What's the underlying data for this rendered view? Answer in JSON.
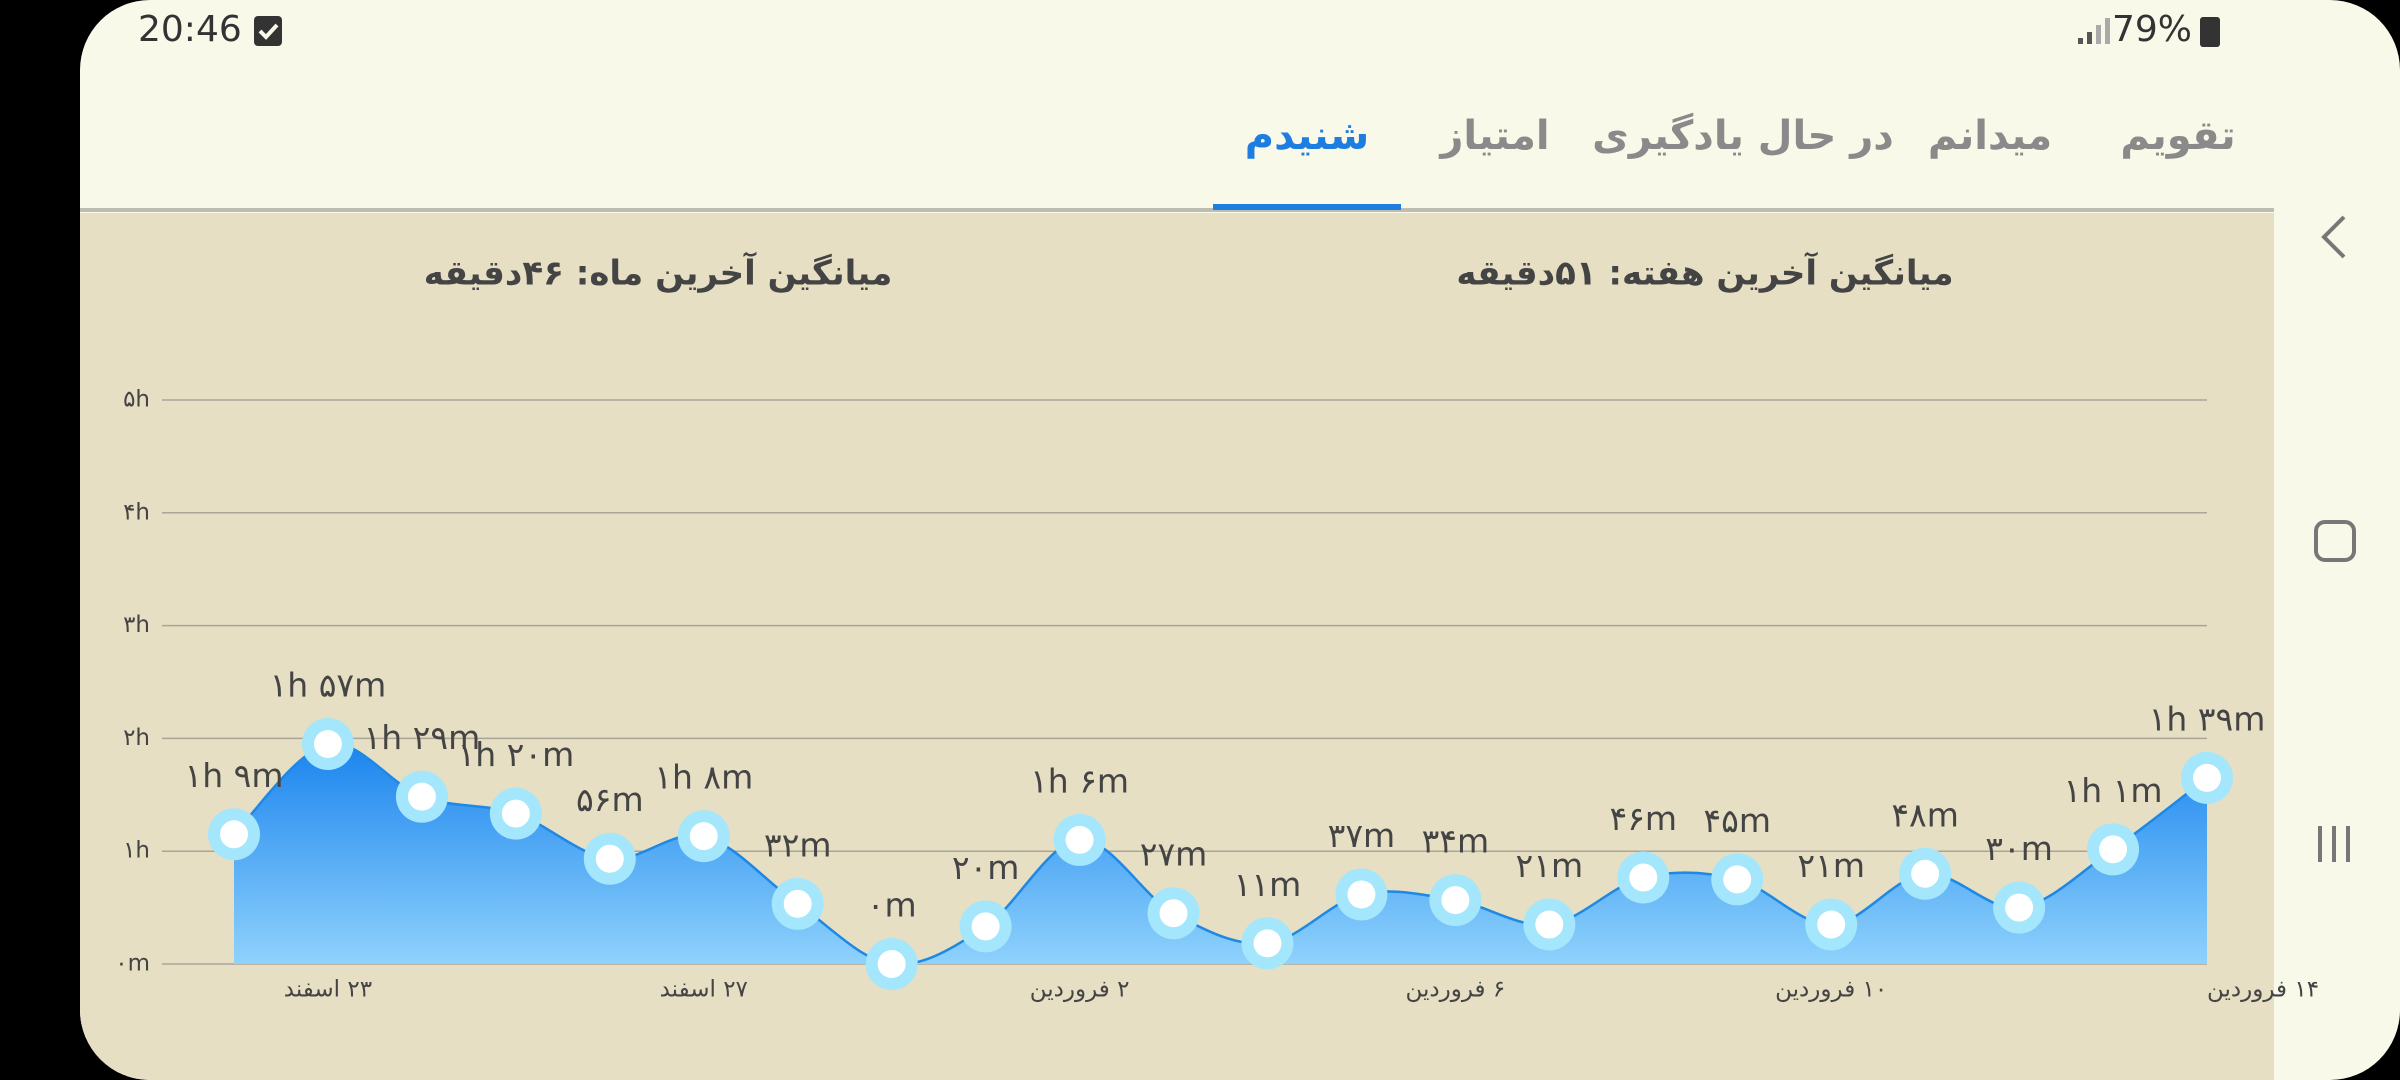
{
  "status_bar": {
    "time": "20:46",
    "battery": "79%"
  },
  "tabs": [
    "تقویم",
    "میدانم",
    "در حال یادگیری",
    "امتیاز",
    "شنیدم"
  ],
  "active_tab": 4,
  "stats": [
    "میانگین آخرین هفته: ۵۱دقیقه",
    "میانگین آخرین ماه: ۴۶دقیقه"
  ],
  "chart_data": {
    "type": "area",
    "categories": [
      null,
      "۲۳ اسفند",
      null,
      null,
      null,
      "۲۷ اسفند",
      null,
      null,
      null,
      "۲ فروردین",
      null,
      null,
      null,
      "۶ فروردین",
      null,
      null,
      null,
      "۱۰ فروردین",
      null,
      null,
      null,
      "۱۴ فروردین"
    ],
    "series": [
      {
        "color": "#1e88e5",
        "values": [
          69,
          117,
          89,
          80,
          56,
          68,
          32,
          0,
          20,
          66,
          27,
          11,
          37,
          34,
          21,
          46,
          45,
          21,
          48,
          30,
          61,
          99
        ],
        "value_labels": [
          "۱h ۹m",
          "۱h ۵۷m",
          "۱h ۲۹m",
          "۱h ۲۰m",
          "۵۶m",
          "۱h ۸m",
          "۳۲m",
          "۰m",
          "۲۰m",
          "۱h ۶m",
          "۲۷m",
          "۱۱m",
          "۳۷m",
          "۳۴m",
          "۲۱m",
          "۴۶m",
          "۴۵m",
          "۲۱m",
          "۴۸m",
          "۳۰m",
          "۱h ۱m",
          "۱h ۳۹m"
        ]
      }
    ],
    "ylim": [
      0,
      300
    ],
    "yticks": [
      {
        "value": 0,
        "label": "۰m"
      },
      {
        "value": 60,
        "label": "۱h"
      },
      {
        "value": 120,
        "label": "۲h"
      },
      {
        "value": 180,
        "label": "۳h"
      },
      {
        "value": 240,
        "label": "۴h"
      },
      {
        "value": 300,
        "label": "۵h"
      }
    ],
    "grid": true
  }
}
